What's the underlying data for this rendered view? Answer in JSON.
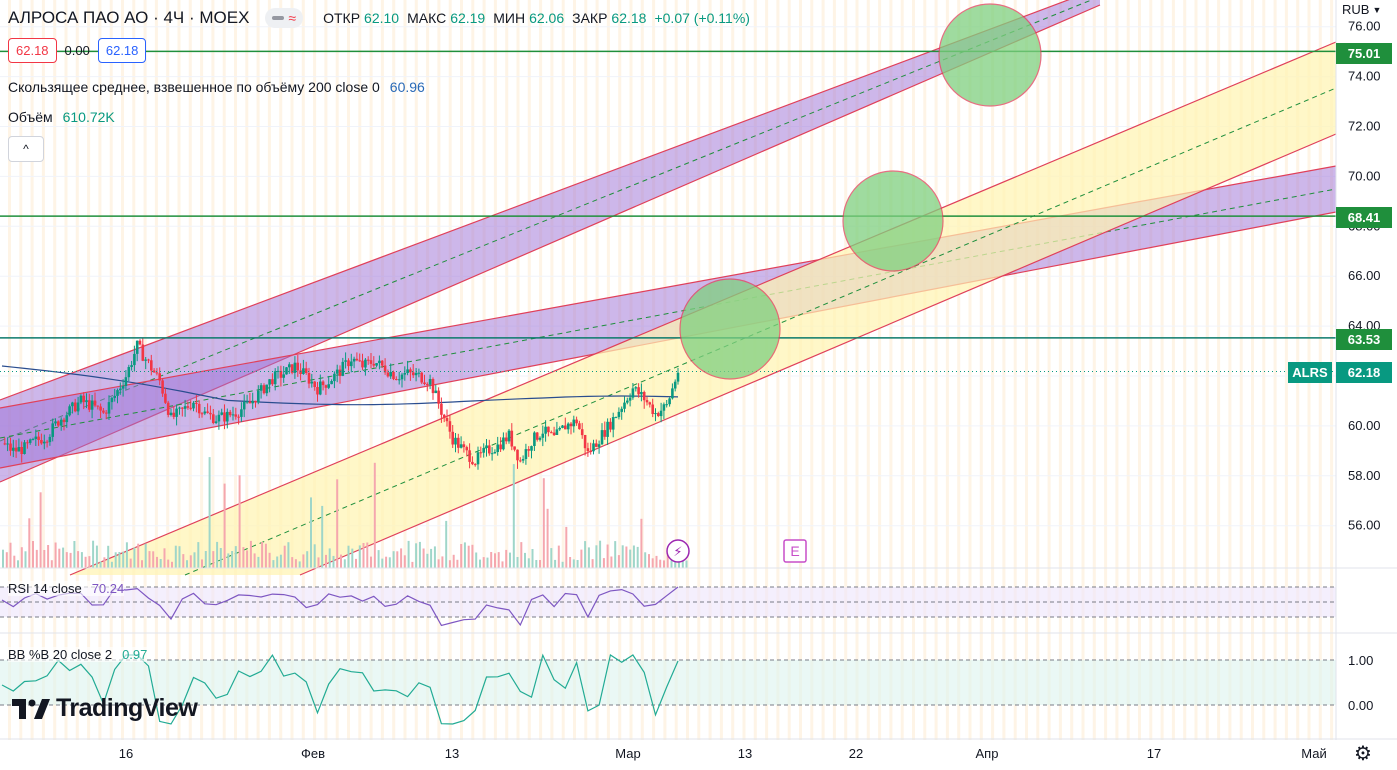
{
  "header": {
    "title": "АЛРОСА ПАО АО · 4Ч · MOEX",
    "ohlc": [
      {
        "key": "ОТКР",
        "value": "62.10"
      },
      {
        "key": "МАКС",
        "value": "62.19"
      },
      {
        "key": "МИН",
        "value": "62.06"
      },
      {
        "key": "ЗАКР",
        "value": "62.18"
      }
    ],
    "change": "+0.07 (+0.11%)",
    "sell_price": "62.18",
    "spread": "0.00",
    "buy_price": "62.18"
  },
  "indicators": {
    "vwma_label": "Скользящее среднее, взвешенное по объёму 200 close 0",
    "vwma_value": "60.96",
    "volume_label": "Объём",
    "volume_value": "610.72K",
    "collapse_icon": "^",
    "rsi_label": "RSI 14 close",
    "rsi_value": "70.24",
    "bb_label": "BB %B 20 close 2",
    "bb_value": "0.97"
  },
  "currency": "RUB",
  "symbol_tag": "ALRS",
  "last_price_tag": "62.18",
  "level_tags": [
    "75.01",
    "68.41",
    "63.53"
  ],
  "logo_text": "TradingView",
  "event_icons": {
    "dividend": "⚡",
    "earnings": "E"
  },
  "colors": {
    "up": "#089981",
    "down": "#f23645",
    "level": "#1f8f3c",
    "purple_channel": "#9c6fd6",
    "yellow_channel": "#fff4b0",
    "target_circle": "#7fd07f",
    "vwma": "#2a4d8f",
    "rsi": "#7e57c2",
    "bb": "#22ab94"
  },
  "chart_data": [
    {
      "type": "candlestick",
      "symbol": "ALRS",
      "timeframe": "4Ч",
      "x_ticks": [
        "16",
        "Фев",
        "13",
        "Мар",
        "13",
        "22",
        "Апр",
        "17",
        "Май"
      ],
      "ylim": [
        55,
        76
      ],
      "y_ticks": [
        "56.00",
        "58.00",
        "60.00",
        "62.00",
        "64.00",
        "66.00",
        "68.00",
        "70.00",
        "72.00",
        "74.00",
        "76.00"
      ],
      "approx_close_path": [
        59.3,
        59.0,
        59.1,
        59.4,
        59.6,
        60.2,
        60.6,
        61.0,
        60.8,
        60.5,
        61.2,
        62.0,
        63.2,
        62.5,
        61.8,
        60.3,
        60.6,
        61.0,
        60.5,
        60.3,
        60.4,
        60.6,
        60.9,
        61.4,
        61.9,
        62.1,
        62.4,
        62.0,
        61.5,
        61.8,
        62.2,
        62.7,
        62.4,
        62.6,
        62.3,
        62.0,
        62.1,
        62.0,
        61.8,
        60.6,
        59.5,
        59.0,
        58.6,
        59.0,
        59.2,
        59.6,
        58.6,
        59.4,
        59.8,
        59.5,
        60.0,
        60.2,
        58.9,
        59.5,
        60.1,
        60.8,
        61.5,
        61.1,
        60.5,
        60.8,
        62.18
      ],
      "levels": [
        75.01,
        68.41,
        63.53
      ],
      "last": 62.18,
      "vwma_last": 60.96
    },
    {
      "type": "line",
      "title": "RSI 14 close",
      "last": 70.24,
      "bands": [
        70,
        30
      ]
    },
    {
      "type": "line",
      "title": "BB %B 20 close 2",
      "last": 0.97,
      "y_ticks": [
        "1.00",
        "0.00"
      ]
    }
  ]
}
